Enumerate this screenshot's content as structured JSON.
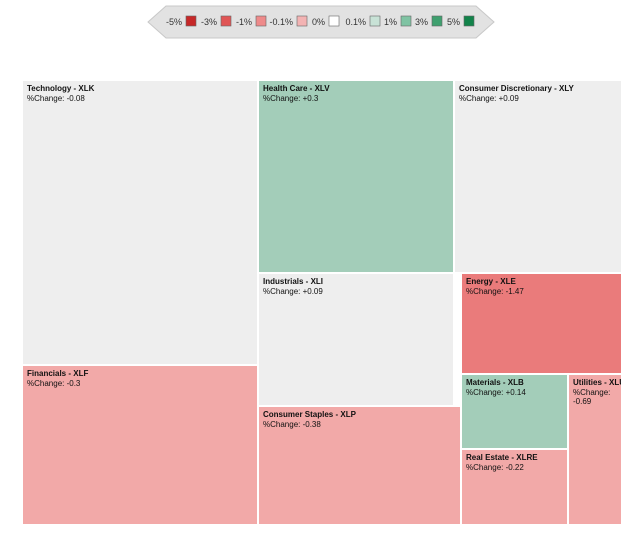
{
  "chart_data": {
    "type": "treemap",
    "legend": [
      {
        "label": "-5%",
        "color": "#c62828"
      },
      {
        "label": "-3%",
        "color": "#e05555"
      },
      {
        "label": "-1%",
        "color": "#ee8a8a"
      },
      {
        "label": "-0.1%",
        "color": "#f3b3b3"
      },
      {
        "label": "0%",
        "color": "#ffffff"
      },
      {
        "label": "0.1%",
        "color": "#c8e2d6"
      },
      {
        "label": "1%",
        "color": "#7fc3a3"
      },
      {
        "label": "3%",
        "color": "#3fa06f"
      },
      {
        "label": "5%",
        "color": "#12834a"
      }
    ],
    "change_prefix": "%Change: ",
    "sectors": [
      {
        "name": "Technology - XLK",
        "change_text": "-0.08",
        "change": -0.08,
        "color": "#eeeeee"
      },
      {
        "name": "Financials - XLF",
        "change_text": "-0.3",
        "change": -0.3,
        "color": "#f2a9a8"
      },
      {
        "name": "Health Care - XLV",
        "change_text": "+0.3",
        "change": 0.3,
        "color": "#a3cdb9"
      },
      {
        "name": "Industrials - XLI",
        "change_text": "+0.09",
        "change": 0.09,
        "color": "#eeeeee"
      },
      {
        "name": "Consumer Staples - XLP",
        "change_text": "-0.38",
        "change": -0.38,
        "color": "#f2a9a8"
      },
      {
        "name": "Consumer Discretionary - XLY",
        "change_text": "+0.09",
        "change": 0.09,
        "color": "#eeeeee"
      },
      {
        "name": "Energy - XLE",
        "change_text": "-1.47",
        "change": -1.47,
        "color": "#ea7b7b"
      },
      {
        "name": "Materials - XLB",
        "change_text": "+0.14",
        "change": 0.14,
        "color": "#a3cdb9"
      },
      {
        "name": "Real Estate - XLRE",
        "change_text": "-0.22",
        "change": -0.22,
        "color": "#f2a9a8"
      },
      {
        "name": "Utilities - XLU",
        "change_text": "-0.69",
        "change": -0.69,
        "color": "#f2a9a8"
      }
    ]
  }
}
